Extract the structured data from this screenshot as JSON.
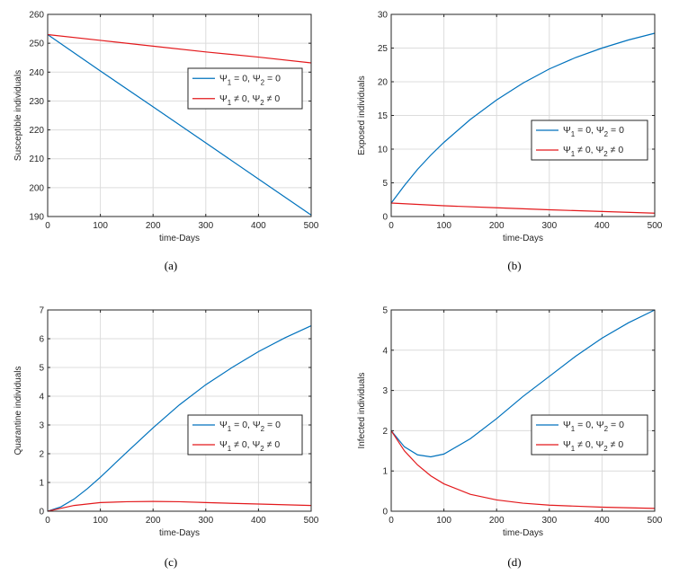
{
  "chart_data": [
    {
      "type": "line",
      "caption": "(a)",
      "xlabel": "time-Days",
      "ylabel": "Susceptible individuals",
      "xlim": [
        0,
        500
      ],
      "ylim": [
        190,
        260
      ],
      "xticks": [
        0,
        100,
        200,
        300,
        400,
        500
      ],
      "yticks": [
        190,
        200,
        210,
        220,
        230,
        240,
        250,
        260
      ],
      "grid": true,
      "legend_position": "center-right",
      "series": [
        {
          "name": "Ψ₁ = 0, Ψ₂ = 0",
          "legend": {
            "main": "Ψ",
            "s1": "1",
            "mid": " = 0, Ψ",
            "s2": "2",
            "end": " = 0"
          },
          "color": "#0072BD",
          "x": [
            0,
            100,
            200,
            300,
            400,
            500
          ],
          "y": [
            253,
            240.4,
            228,
            215.5,
            203,
            190.5
          ]
        },
        {
          "name": "Ψ₁ ≠ 0, Ψ₂ ≠ 0",
          "legend": {
            "main": "Ψ",
            "s1": "1",
            "mid": " ≠ 0, Ψ",
            "s2": "2",
            "end": " ≠ 0"
          },
          "color": "#E3191C",
          "x": [
            0,
            100,
            200,
            300,
            400,
            500
          ],
          "y": [
            253,
            251,
            249,
            247,
            245.2,
            243.2
          ]
        }
      ]
    },
    {
      "type": "line",
      "caption": "(b)",
      "xlabel": "time-Days",
      "ylabel": "Exposed individuals",
      "xlim": [
        0,
        500
      ],
      "ylim": [
        0,
        30
      ],
      "xticks": [
        0,
        100,
        200,
        300,
        400,
        500
      ],
      "yticks": [
        0,
        5,
        10,
        15,
        20,
        25,
        30
      ],
      "grid": true,
      "legend_position": "center-right",
      "series": [
        {
          "name": "Ψ₁ = 0, Ψ₂ = 0",
          "legend": {
            "main": "Ψ",
            "s1": "1",
            "mid": " = 0, Ψ",
            "s2": "2",
            "end": " = 0"
          },
          "color": "#0072BD",
          "x": [
            0,
            25,
            50,
            75,
            100,
            150,
            200,
            250,
            300,
            350,
            400,
            450,
            500
          ],
          "y": [
            2,
            4.6,
            7,
            9.1,
            11,
            14.4,
            17.3,
            19.8,
            21.9,
            23.6,
            25,
            26.2,
            27.2
          ]
        },
        {
          "name": "Ψ₁ ≠ 0, Ψ₂ ≠ 0",
          "legend": {
            "main": "Ψ",
            "s1": "1",
            "mid": " ≠ 0, Ψ",
            "s2": "2",
            "end": " ≠ 0"
          },
          "color": "#E3191C",
          "x": [
            0,
            100,
            200,
            300,
            400,
            500
          ],
          "y": [
            2,
            1.6,
            1.3,
            1,
            0.75,
            0.5
          ]
        }
      ]
    },
    {
      "type": "line",
      "caption": "(c)",
      "xlabel": "time-Days",
      "ylabel": "Quarantine individuals",
      "xlim": [
        0,
        500
      ],
      "ylim": [
        0,
        7
      ],
      "xticks": [
        0,
        100,
        200,
        300,
        400,
        500
      ],
      "yticks": [
        0,
        1,
        2,
        3,
        4,
        5,
        6,
        7
      ],
      "grid": true,
      "legend_position": "lower-right",
      "series": [
        {
          "name": "Ψ₁ = 0, Ψ₂ = 0",
          "legend": {
            "main": "Ψ",
            "s1": "1",
            "mid": " = 0, Ψ",
            "s2": "2",
            "end": " = 0"
          },
          "color": "#0072BD",
          "x": [
            0,
            25,
            50,
            75,
            100,
            150,
            200,
            250,
            300,
            350,
            400,
            450,
            500
          ],
          "y": [
            0,
            0.15,
            0.42,
            0.78,
            1.18,
            2.05,
            2.9,
            3.7,
            4.4,
            5.0,
            5.55,
            6.03,
            6.45
          ]
        },
        {
          "name": "Ψ₁ ≠ 0, Ψ₂ ≠ 0",
          "legend": {
            "main": "Ψ",
            "s1": "1",
            "mid": " ≠ 0, Ψ",
            "s2": "2",
            "end": " ≠ 0"
          },
          "color": "#E3191C",
          "x": [
            0,
            25,
            50,
            100,
            150,
            200,
            250,
            300,
            400,
            500
          ],
          "y": [
            0,
            0.1,
            0.2,
            0.3,
            0.33,
            0.34,
            0.33,
            0.3,
            0.25,
            0.2
          ]
        }
      ]
    },
    {
      "type": "line",
      "caption": "(d)",
      "xlabel": "time-Days",
      "ylabel": "Infected individuals",
      "xlim": [
        0,
        500
      ],
      "ylim": [
        0,
        5
      ],
      "xticks": [
        0,
        100,
        200,
        300,
        400,
        500
      ],
      "yticks": [
        0,
        1,
        2,
        3,
        4,
        5
      ],
      "grid": true,
      "legend_position": "lower-right",
      "series": [
        {
          "name": "Ψ₁ = 0, Ψ₂ = 0",
          "legend": {
            "main": "Ψ",
            "s1": "1",
            "mid": " = 0, Ψ",
            "s2": "2",
            "end": " = 0"
          },
          "color": "#0072BD",
          "x": [
            0,
            25,
            50,
            75,
            100,
            150,
            200,
            250,
            300,
            350,
            400,
            450,
            500
          ],
          "y": [
            2,
            1.6,
            1.4,
            1.35,
            1.42,
            1.8,
            2.3,
            2.85,
            3.35,
            3.85,
            4.3,
            4.68,
            5.0
          ]
        },
        {
          "name": "Ψ₁ ≠ 0, Ψ₂ ≠ 0",
          "legend": {
            "main": "Ψ",
            "s1": "1",
            "mid": " ≠ 0, Ψ",
            "s2": "2",
            "end": " ≠ 0"
          },
          "color": "#E3191C",
          "x": [
            0,
            25,
            50,
            75,
            100,
            150,
            200,
            250,
            300,
            400,
            500
          ],
          "y": [
            2,
            1.5,
            1.15,
            0.88,
            0.68,
            0.42,
            0.28,
            0.2,
            0.15,
            0.1,
            0.07
          ]
        }
      ]
    }
  ]
}
